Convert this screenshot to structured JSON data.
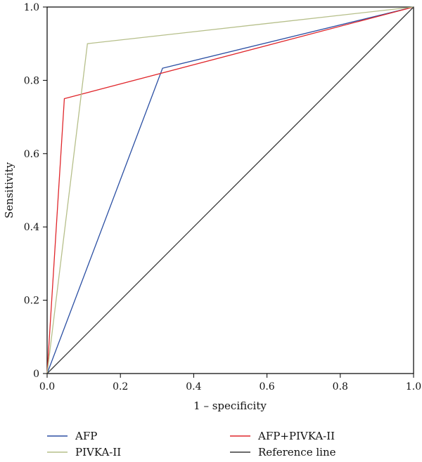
{
  "chart_data": {
    "type": "line",
    "xlabel": "1 – specificity",
    "ylabel": "Sensitivity",
    "xlim": [
      0,
      1
    ],
    "ylim": [
      0,
      1
    ],
    "xticks": [
      {
        "value": 0,
        "label": "0.0"
      },
      {
        "value": 0.2,
        "label": "0.2"
      },
      {
        "value": 0.4,
        "label": "0.4"
      },
      {
        "value": 0.6,
        "label": "0.6"
      },
      {
        "value": 0.8,
        "label": "0.8"
      },
      {
        "value": 1.0,
        "label": "1.0"
      }
    ],
    "yticks": [
      {
        "value": 0,
        "label": "0"
      },
      {
        "value": 0.2,
        "label": "0.2"
      },
      {
        "value": 0.4,
        "label": "0.4"
      },
      {
        "value": 0.6,
        "label": "0.6"
      },
      {
        "value": 0.8,
        "label": "0.8"
      },
      {
        "value": 1.0,
        "label": "1.0"
      }
    ],
    "grid": false,
    "legend_position": "bottom",
    "series": [
      {
        "name": "AFP",
        "color": "#2b4fa3",
        "x": [
          0,
          0.315,
          1.0
        ],
        "y": [
          0,
          0.833,
          1.0
        ]
      },
      {
        "name": "AFP+PIVKA-II",
        "color": "#e0262b",
        "x": [
          0,
          0.047,
          1.0
        ],
        "y": [
          0,
          0.75,
          1.0
        ]
      },
      {
        "name": "PIVKA-II",
        "color": "#b6bf8a",
        "x": [
          0,
          0.11,
          1.0
        ],
        "y": [
          0,
          0.9,
          1.0
        ]
      },
      {
        "name": "Reference line",
        "color": "#3a3a3a",
        "x": [
          0,
          1.0
        ],
        "y": [
          0,
          1.0
        ]
      }
    ],
    "legend_order": [
      "AFP",
      "AFP+PIVKA-II",
      "PIVKA-II",
      "Reference line"
    ]
  }
}
